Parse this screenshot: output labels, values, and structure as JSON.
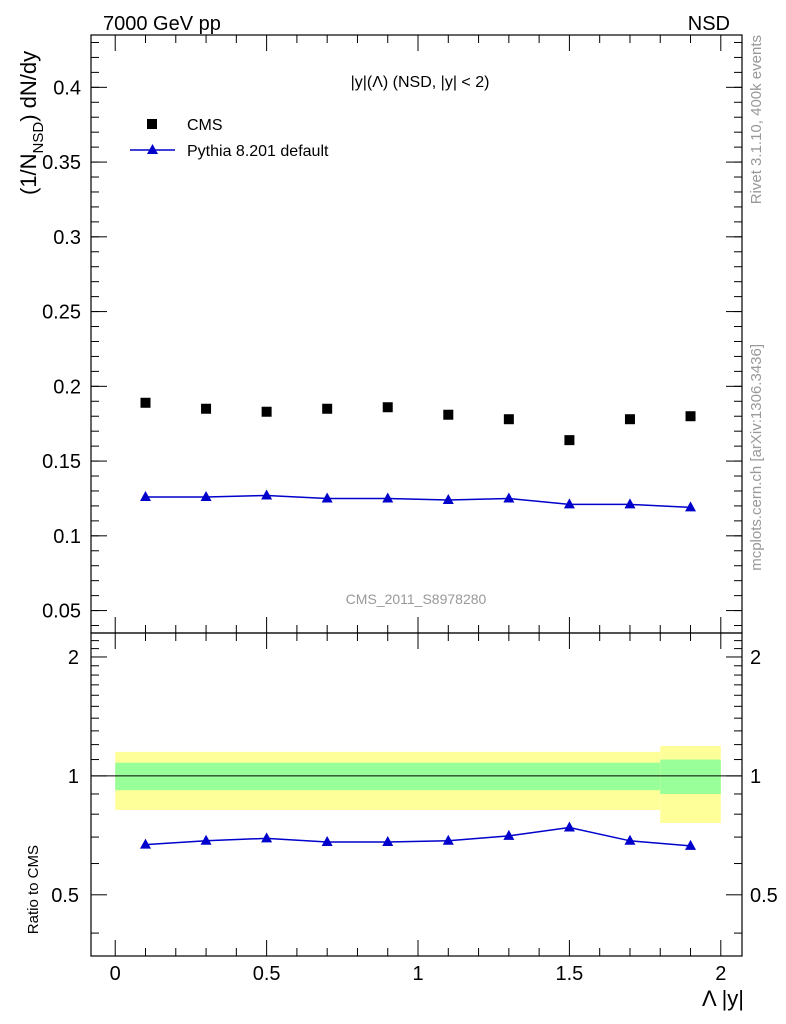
{
  "header": {
    "left": "7000 GeV pp",
    "right": "NSD"
  },
  "side": {
    "top": "Rivet 3.1.10,  400k events",
    "bottom": "mcplots.cern.ch [arXiv:1306.3436]"
  },
  "colors": {
    "data": "#000000",
    "mc": "#0000cc",
    "band_inner": "#99ff99",
    "band_outer": "#ffff99",
    "watermark": "#999999"
  },
  "chart_data": [
    {
      "type": "scatter",
      "title": "|y|(Λ) (NSD, |y| < 2)",
      "watermark": "CMS_2011_S8978280",
      "ylabel": "(1/N_NSD) dN/dy",
      "xlim": [
        -0.08,
        2.07
      ],
      "ylim": [
        0.035,
        0.435
      ],
      "y_ticks": [
        "0.05",
        "0.1",
        "0.15",
        "0.2",
        "0.25",
        "0.3",
        "0.35",
        "0.4"
      ],
      "legend_position": "top-left",
      "series": [
        {
          "name": "CMS",
          "marker": "square",
          "x": [
            0.1,
            0.3,
            0.5,
            0.7,
            0.9,
            1.1,
            1.3,
            1.5,
            1.7,
            1.9
          ],
          "y": [
            0.189,
            0.185,
            0.183,
            0.185,
            0.186,
            0.181,
            0.178,
            0.164,
            0.178,
            0.18
          ]
        },
        {
          "name": "Pythia 8.201 default",
          "marker": "triangle",
          "x": [
            0.1,
            0.3,
            0.5,
            0.7,
            0.9,
            1.1,
            1.3,
            1.5,
            1.7,
            1.9
          ],
          "y": [
            0.126,
            0.126,
            0.127,
            0.125,
            0.125,
            0.124,
            0.125,
            0.121,
            0.121,
            0.119
          ]
        }
      ]
    },
    {
      "type": "line",
      "ylabel": "Ratio to CMS",
      "xlabel": "Λ |y|",
      "xlim": [
        -0.08,
        2.07
      ],
      "ylim": [
        0.35,
        2.3
      ],
      "x_ticks": [
        "0",
        "0.5",
        "1",
        "1.5",
        "2"
      ],
      "y_ticks": [
        "0.5",
        "1",
        "2"
      ],
      "bands": [
        {
          "x0": 0.0,
          "x1": 1.8,
          "inner": [
            0.92,
            1.08
          ],
          "outer": [
            0.82,
            1.15
          ]
        },
        {
          "x0": 1.8,
          "x1": 2.0,
          "inner": [
            0.9,
            1.1
          ],
          "outer": [
            0.76,
            1.19
          ]
        }
      ],
      "series": [
        {
          "name": "Pythia 8.201 default",
          "x": [
            0.1,
            0.3,
            0.5,
            0.7,
            0.9,
            1.1,
            1.3,
            1.5,
            1.7,
            1.9
          ],
          "y": [
            0.67,
            0.685,
            0.695,
            0.68,
            0.68,
            0.685,
            0.705,
            0.74,
            0.685,
            0.665
          ]
        }
      ]
    }
  ]
}
